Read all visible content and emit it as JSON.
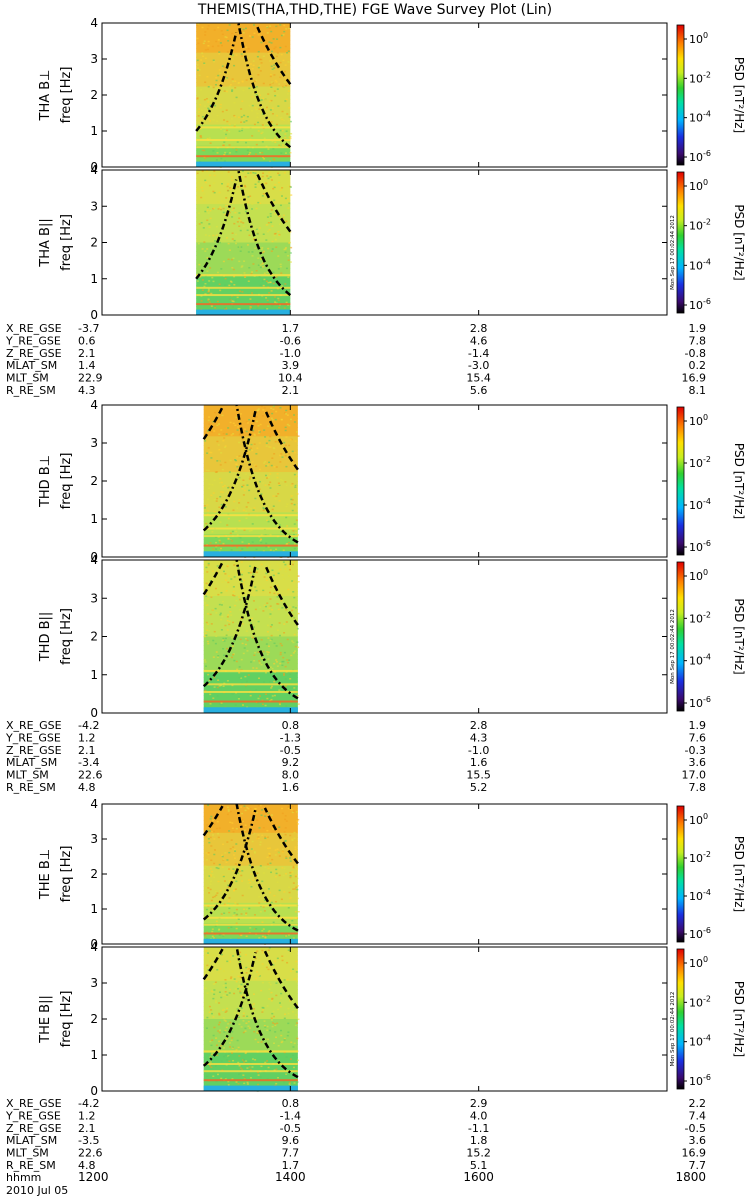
{
  "title": "THEMIS(THA,THD,THE) FGE Wave Survey Plot (Lin)",
  "colors": {
    "spectrogram_low": "#2fbf4a",
    "spectrogram_mid": "#bfe04a",
    "spectrogram_high": "#f0a020",
    "gyro_line": "#000000",
    "frame": "#000000"
  },
  "chart_data": {
    "type": "heatmap",
    "x": {
      "tick_values": [
        1200,
        1400,
        1600,
        1800
      ],
      "range": [
        1200,
        1800
      ],
      "label": "hhmm"
    },
    "date": "2010 Jul 05",
    "y": {
      "label": "freq [Hz]",
      "range": [
        0,
        4
      ],
      "tick_values": [
        "0",
        "1",
        "2",
        "3",
        "4"
      ]
    },
    "colorbar": {
      "label": "PSD [nT²/Hz]",
      "scale": "log",
      "ticks": [
        {
          "mantissa": "10",
          "exp": "0"
        },
        {
          "mantissa": "10",
          "exp": "-2"
        },
        {
          "mantissa": "10",
          "exp": "-4"
        },
        {
          "mantissa": "10",
          "exp": "-6"
        }
      ],
      "stamp": "Mon Sep 17 00:02:44 2012"
    },
    "probes": [
      {
        "id": "THA",
        "panels": [
          {
            "label": "THA B⊥",
            "coverage": [
              1300,
              1400
            ]
          },
          {
            "label": "THA B||",
            "coverage": [
              1300,
              1400
            ]
          }
        ],
        "ephemeris": {
          "labels": [
            "X_RE_GSE",
            "Y_RE_GSE",
            "Z_RE_GSE",
            "MLAT_SM",
            "MLT_SM",
            "R_RE_SM"
          ],
          "rows": [
            [
              "-3.7",
              "1.7",
              "2.8",
              "1.9"
            ],
            [
              "0.6",
              "-0.6",
              "4.6",
              "7.8"
            ],
            [
              "2.1",
              "-1.0",
              "-1.4",
              "-0.8"
            ],
            [
              "1.4",
              "3.9",
              "-3.0",
              "0.2"
            ],
            [
              "22.9",
              "10.4",
              "15.4",
              "16.9"
            ],
            [
              "4.3",
              "2.1",
              "5.6",
              "8.1"
            ]
          ]
        }
      },
      {
        "id": "THD",
        "panels": [
          {
            "label": "THD B⊥",
            "coverage": [
              1308,
              1408
            ]
          },
          {
            "label": "THD B||",
            "coverage": [
              1308,
              1408
            ]
          }
        ],
        "ephemeris": {
          "labels": [
            "X_RE_GSE",
            "Y_RE_GSE",
            "Z_RE_GSE",
            "MLAT_SM",
            "MLT_SM",
            "R_RE_SM"
          ],
          "rows": [
            [
              "-4.2",
              "0.8",
              "2.8",
              "1.9"
            ],
            [
              "1.2",
              "-1.3",
              "4.3",
              "7.6"
            ],
            [
              "2.1",
              "-0.5",
              "-1.0",
              "-0.3"
            ],
            [
              "-3.4",
              "9.2",
              "1.6",
              "3.6"
            ],
            [
              "22.6",
              "8.0",
              "15.5",
              "17.0"
            ],
            [
              "4.8",
              "1.6",
              "5.2",
              "7.8"
            ]
          ]
        }
      },
      {
        "id": "THE",
        "panels": [
          {
            "label": "THE B⊥",
            "coverage": [
              1308,
              1408
            ]
          },
          {
            "label": "THE B||",
            "coverage": [
              1308,
              1408
            ]
          }
        ],
        "ephemeris": {
          "labels": [
            "X_RE_GSE",
            "Y_RE_GSE",
            "Z_RE_GSE",
            "MLAT_SM",
            "MLT_SM",
            "R_RE_SM"
          ],
          "rows": [
            [
              "-4.2",
              "0.8",
              "2.9",
              "2.2"
            ],
            [
              "1.2",
              "-1.4",
              "4.0",
              "7.4"
            ],
            [
              "2.1",
              "-0.5",
              "-1.1",
              "-0.5"
            ],
            [
              "-3.5",
              "9.6",
              "1.8",
              "3.6"
            ],
            [
              "22.6",
              "7.7",
              "15.2",
              "16.9"
            ],
            [
              "4.8",
              "1.7",
              "5.1",
              "7.7"
            ]
          ]
        }
      }
    ]
  }
}
